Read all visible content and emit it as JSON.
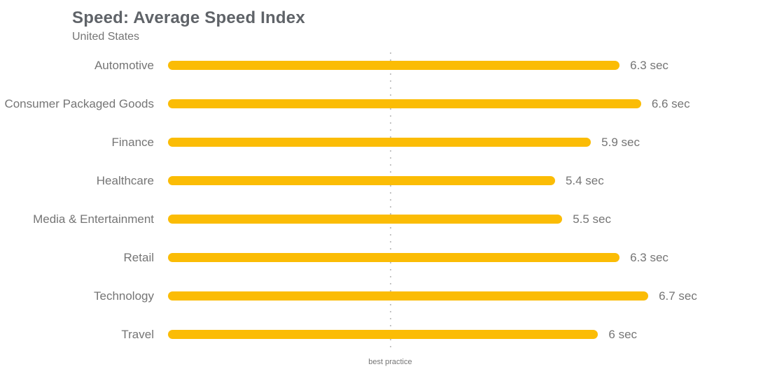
{
  "header": {
    "title": "Speed: Average Speed Index",
    "subtitle": "United States"
  },
  "chart_data": {
    "type": "bar",
    "orientation": "horizontal",
    "title": "Speed: Average Speed Index",
    "subtitle": "United States",
    "categories": [
      "Automotive",
      "Consumer Packaged Goods",
      "Finance",
      "Healthcare",
      "Media & Entertainment",
      "Retail",
      "Technology",
      "Travel"
    ],
    "values": [
      6.3,
      6.6,
      5.9,
      5.4,
      5.5,
      6.3,
      6.7,
      6
    ],
    "value_labels": [
      "6.3 sec",
      "6.6 sec",
      "5.9 sec",
      "5.4 sec",
      "5.5 sec",
      "6.3 sec",
      "6.7 sec",
      "6 sec"
    ],
    "unit": "sec",
    "xlim": [
      0,
      8.4
    ],
    "grid": false,
    "legend": "none",
    "bar_color": "#FBBC05",
    "annotations": [
      {
        "label": "best practice",
        "x": 3.1,
        "style": "dotted-vertical-line",
        "color": "#C4C4C4"
      }
    ]
  },
  "colors": {
    "bar": "#FBBC05",
    "title": "#5F6368",
    "text": "#757575",
    "annotation_line": "#C4C4C4",
    "background": "#FFFFFF"
  }
}
